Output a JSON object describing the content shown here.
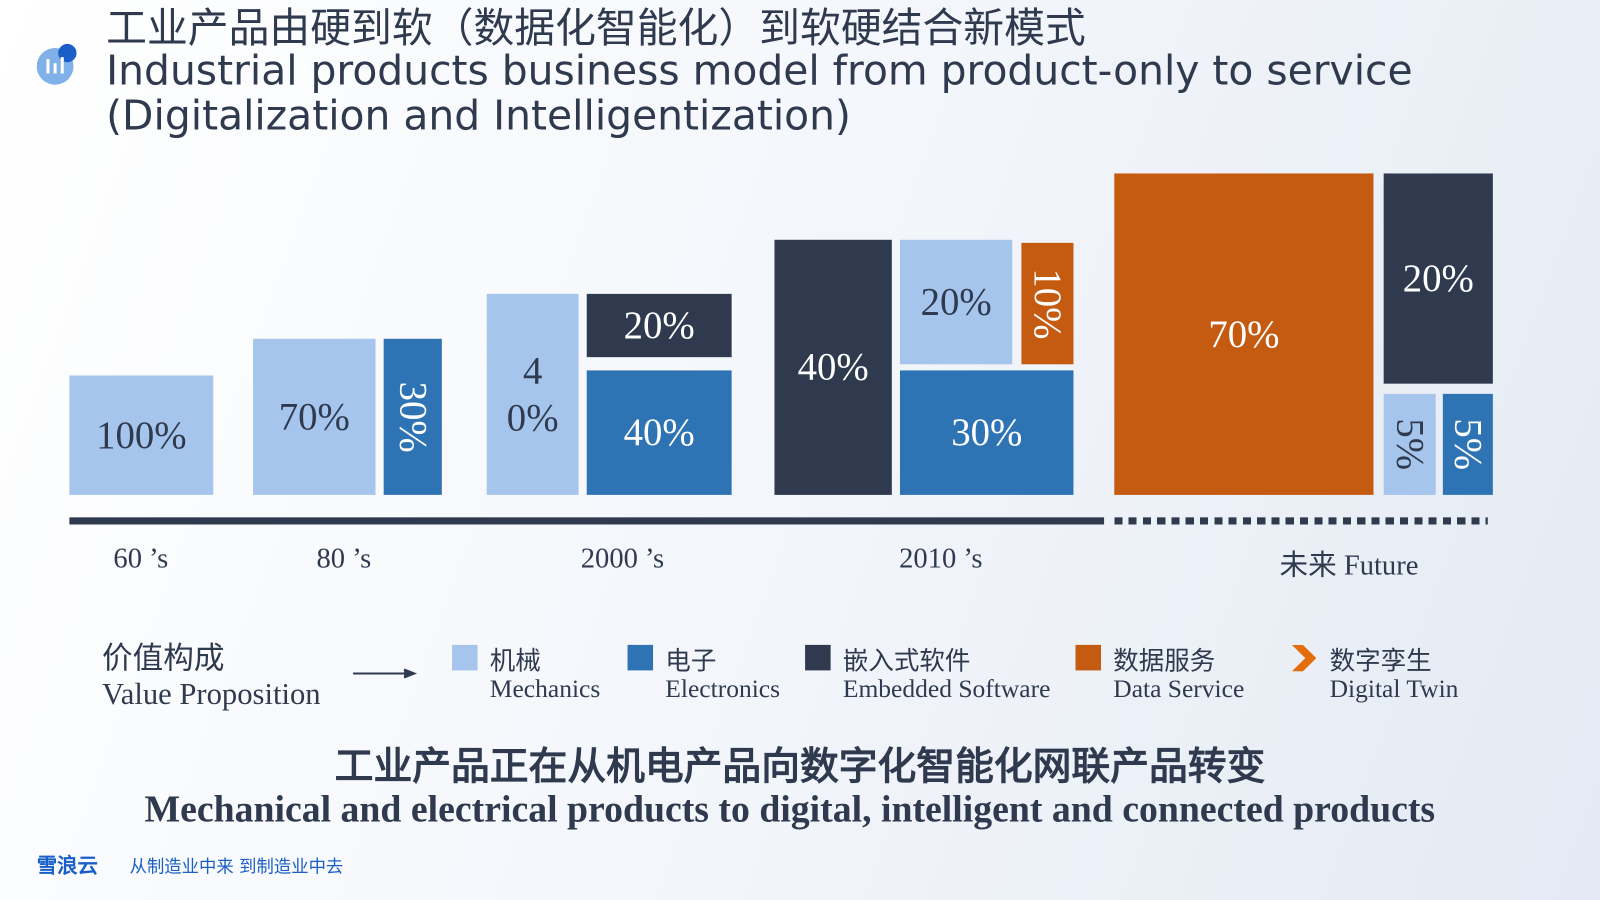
{
  "title": {
    "zh": "工业产品由硬到软（数据化智能化）到软硬结合新模式",
    "en_line1": "Industrial products business model from product-only to service",
    "en_line2": "(Digitalization and Intelligentization)"
  },
  "periods": [
    {
      "label": "60 ’s",
      "blocks": [
        "100%"
      ]
    },
    {
      "label": "80 ’s",
      "blocks": [
        "70%",
        "30%"
      ]
    },
    {
      "label": "2000 ’s",
      "blocks": [
        "40%",
        "20%",
        "40%"
      ]
    },
    {
      "label": "2010 ’s",
      "blocks": [
        "40%",
        "20%",
        "10%",
        "30%"
      ]
    },
    {
      "label": "未来 Future",
      "blocks": [
        "70%",
        "20%",
        "5%",
        "5%"
      ]
    }
  ],
  "legend": {
    "title_zh": "价值构成",
    "title_en": "Value Proposition",
    "items": [
      {
        "zh": "机械",
        "en": "Mechanics"
      },
      {
        "zh": "电子",
        "en": "Electronics"
      },
      {
        "zh": "嵌入式软件",
        "en": "Embedded Software"
      },
      {
        "zh": "数据服务",
        "en": "Data Service"
      },
      {
        "zh": "数字孪生",
        "en": "Digital Twin"
      }
    ]
  },
  "summary": {
    "zh": "工业产品正在从机电产品向数字化智能化网联产品转变",
    "en": "Mechanical and electrical products to digital, intelligent and connected products"
  },
  "footer": {
    "brand": "雪浪云",
    "slogan": "从制造业中来 到制造业中去"
  }
}
